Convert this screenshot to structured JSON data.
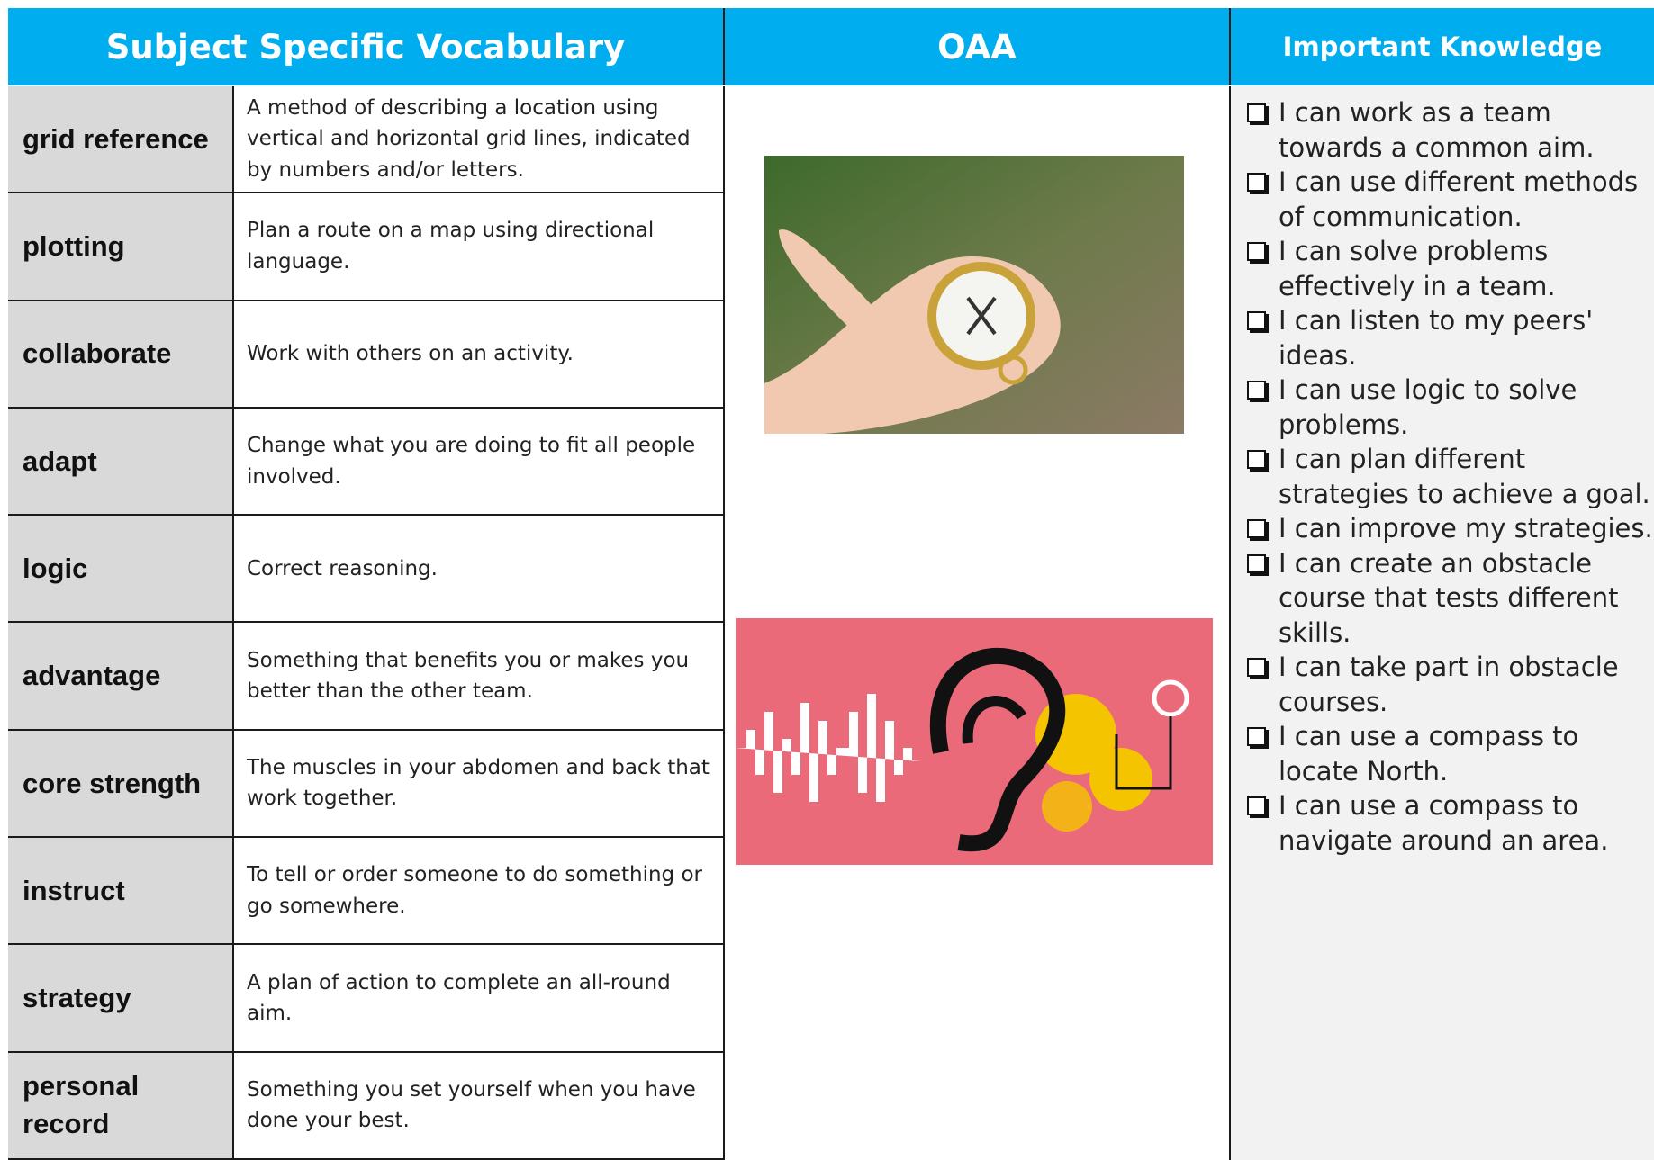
{
  "header": {
    "vocabulary": "Subject Specific Vocabulary",
    "topic": "OAA",
    "knowledge": "Important Knowledge"
  },
  "vocabulary": [
    {
      "term": "grid reference",
      "definition": "A method of describing a location using vertical and horizontal grid lines, indicated by numbers and/or letters."
    },
    {
      "term": "plotting",
      "definition": "Plan a route on a map using directional language."
    },
    {
      "term": "collaborate",
      "definition": "Work with others on an activity."
    },
    {
      "term": "adapt",
      "definition": "Change what you are doing to fit all people involved."
    },
    {
      "term": "logic",
      "definition": "Correct reasoning."
    },
    {
      "term": "advantage",
      "definition": "Something that benefits you or makes you better than the other team."
    },
    {
      "term": "core strength",
      "definition": "The muscles in your abdomen and back that work together."
    },
    {
      "term": "instruct",
      "definition": "To tell or order someone to do something or go somewhere."
    },
    {
      "term": "strategy",
      "definition": "A plan of action to complete an all-round aim."
    },
    {
      "term": "personal record",
      "definition": "Something you set yourself when you have done your best."
    }
  ],
  "knowledge": [
    "I can work as a team towards a common aim.",
    "I can use different methods of communication.",
    "I can solve problems effectively in a team.",
    "I can listen to my peers' ideas.",
    "I can use logic to solve problems.",
    "I can plan different strategies to achieve a goal.",
    "I can improve my strategies.",
    "I can create an obstacle course that tests different skills.",
    "I can take part in obstacle courses.",
    "I can use a compass to locate North.",
    "I can use a compass to navigate around an area."
  ]
}
